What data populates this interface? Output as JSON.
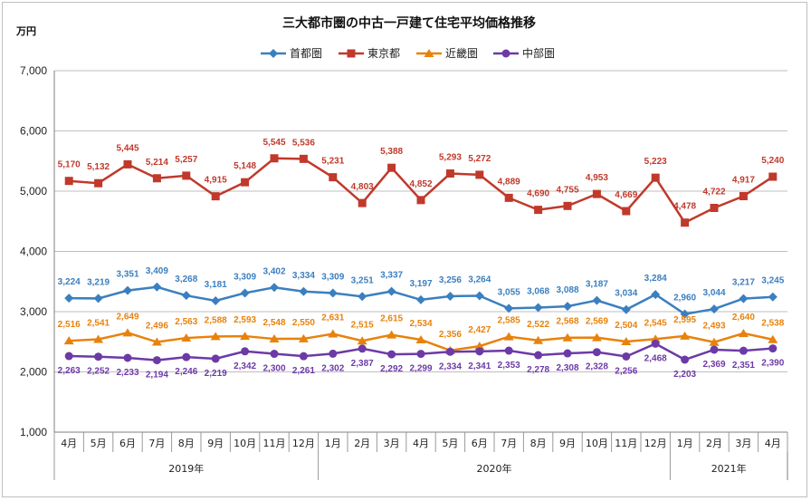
{
  "chart_data": {
    "type": "line",
    "title": "三大都市圏の中古一戸建て住宅平均価格推移",
    "ylabel": "万円",
    "ylim": [
      1000,
      7000
    ],
    "yticks": [
      "1,000",
      "2,000",
      "3,000",
      "4,000",
      "5,000",
      "6,000",
      "7,000"
    ],
    "grid": true,
    "legend": "top-center",
    "categories": [
      "4月",
      "5月",
      "6月",
      "7月",
      "8月",
      "9月",
      "10月",
      "11月",
      "12月",
      "1月",
      "2月",
      "3月",
      "4月",
      "5月",
      "6月",
      "7月",
      "8月",
      "9月",
      "10月",
      "11月",
      "12月",
      "1月",
      "2月",
      "3月",
      "4月"
    ],
    "years": [
      {
        "label": "2019年",
        "start": 0,
        "end": 8
      },
      {
        "label": "2020年",
        "start": 9,
        "end": 20
      },
      {
        "label": "2021年",
        "start": 21,
        "end": 24
      }
    ],
    "series": [
      {
        "name": "首都圏",
        "color": "#3b7fbf",
        "marker": "diamond",
        "values": [
          3224,
          3219,
          3351,
          3409,
          3268,
          3181,
          3309,
          3402,
          3334,
          3309,
          3251,
          3337,
          3197,
          3256,
          3264,
          3055,
          3068,
          3088,
          3187,
          3034,
          3284,
          2960,
          3044,
          3217,
          3245
        ],
        "labels": [
          "3,224",
          "3,219",
          "3,351",
          "3,409",
          "3,268",
          "3,181",
          "3,309",
          "3,402",
          "3,334",
          "3,309",
          "3,251",
          "3,337",
          "3,197",
          "3,256",
          "3,264",
          "3,055",
          "3,068",
          "3,088",
          "3,187",
          "3,034",
          "3,284",
          "2,960",
          "3,044",
          "3,217",
          "3,245"
        ]
      },
      {
        "name": "東京都",
        "color": "#c0392b",
        "marker": "square",
        "values": [
          5170,
          5132,
          5445,
          5214,
          5257,
          4915,
          5148,
          5545,
          5536,
          5231,
          4803,
          5388,
          4852,
          5293,
          5272,
          4889,
          4690,
          4755,
          4953,
          4669,
          5223,
          4478,
          4722,
          4917,
          5240
        ],
        "labels": [
          "5,170",
          "5,132",
          "5,445",
          "5,214",
          "5,257",
          "4,915",
          "5,148",
          "5,545",
          "5,536",
          "5,231",
          "4,803",
          "5,388",
          "4,852",
          "5,293",
          "5,272",
          "4,889",
          "4,690",
          "4,755",
          "4,953",
          "4,669",
          "5,223",
          "4,478",
          "4,722",
          "4,917",
          "5,240"
        ]
      },
      {
        "name": "近畿圏",
        "color": "#e8820c",
        "marker": "triangle",
        "values": [
          2516,
          2541,
          2649,
          2496,
          2563,
          2588,
          2593,
          2548,
          2550,
          2631,
          2515,
          2615,
          2534,
          2356,
          2427,
          2585,
          2522,
          2568,
          2569,
          2504,
          2545,
          2595,
          2493,
          2640,
          2538
        ],
        "labels": [
          "2,516",
          "2,541",
          "2,649",
          "2,496",
          "2,563",
          "2,588",
          "2,593",
          "2,548",
          "2,550",
          "2,631",
          "2,515",
          "2,615",
          "2,534",
          "2,356",
          "2,427",
          "2,585",
          "2,522",
          "2,568",
          "2,569",
          "2,504",
          "2,545",
          "2,595",
          "2,493",
          "2,640",
          "2,538"
        ]
      },
      {
        "name": "中部圏",
        "color": "#6c3aa6",
        "marker": "circle",
        "values": [
          2263,
          2252,
          2233,
          2194,
          2246,
          2219,
          2342,
          2300,
          2261,
          2302,
          2387,
          2292,
          2299,
          2334,
          2341,
          2353,
          2278,
          2308,
          2328,
          2256,
          2468,
          2203,
          2369,
          2351,
          2390
        ],
        "labels": [
          "2,263",
          "2,252",
          "2,233",
          "2,194",
          "2,246",
          "2,219",
          "2,342",
          "2,300",
          "2,261",
          "2,302",
          "2,387",
          "2,292",
          "2,299",
          "2,334",
          "2,341",
          "2,353",
          "2,278",
          "2,308",
          "2,328",
          "2,256",
          "2,468",
          "2,203",
          "2,369",
          "2,351",
          "2,390"
        ]
      }
    ]
  }
}
